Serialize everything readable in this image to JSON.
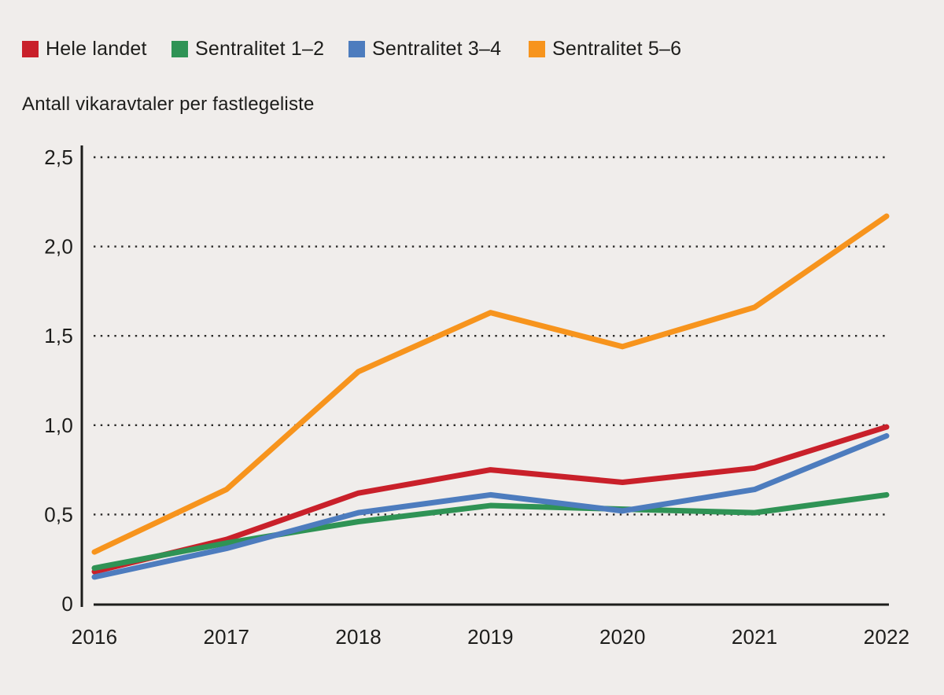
{
  "colors": {
    "background": "#f0edeb",
    "text": "#1d1d1b",
    "axis": "#1d1d1b",
    "grid": "#2a2a28",
    "red": "#c9202a",
    "green": "#2f9355",
    "blue": "#4d7cbe",
    "orange": "#f7941d"
  },
  "legend": {
    "items": [
      {
        "key": "hele-landet",
        "label": "Hele landet",
        "color": "#c9202a"
      },
      {
        "key": "sentralitet-1-2",
        "label": "Sentralitet 1–2",
        "color": "#2f9355"
      },
      {
        "key": "sentralitet-3-4",
        "label": "Sentralitet 3–4",
        "color": "#4d7cbe"
      },
      {
        "key": "sentralitet-5-6",
        "label": "Sentralitet 5–6",
        "color": "#f7941d"
      }
    ]
  },
  "chart_data": {
    "type": "line",
    "title": "Antall vikaravtaler per fastlegeliste",
    "xlabel": "",
    "ylabel": "Antall vikaravtaler per fastlegeliste",
    "x": [
      2016,
      2017,
      2018,
      2019,
      2020,
      2021,
      2022
    ],
    "x_tick_labels": [
      "2016",
      "2017",
      "2018",
      "2019",
      "2020",
      "2021",
      "2022"
    ],
    "y_ticks": [
      0,
      0.5,
      1.0,
      1.5,
      2.0,
      2.5
    ],
    "y_tick_labels": [
      "0",
      "0,5",
      "1,0",
      "1,5",
      "2,0",
      "2,5"
    ],
    "ylim": [
      0,
      2.5
    ],
    "grid": "horizontal-dotted",
    "legend_position": "top",
    "decimal_separator": ",",
    "series": [
      {
        "key": "hele-landet",
        "name": "Hele landet",
        "color": "#c9202a",
        "values": [
          0.18,
          0.36,
          0.62,
          0.75,
          0.68,
          0.76,
          0.99
        ]
      },
      {
        "key": "sentralitet-1-2",
        "name": "Sentralitet 1–2",
        "color": "#2f9355",
        "values": [
          0.2,
          0.34,
          0.46,
          0.55,
          0.53,
          0.51,
          0.61
        ]
      },
      {
        "key": "sentralitet-3-4",
        "name": "Sentralitet 3–4",
        "color": "#4d7cbe",
        "values": [
          0.15,
          0.31,
          0.51,
          0.61,
          0.52,
          0.64,
          0.94
        ]
      },
      {
        "key": "sentralitet-5-6",
        "name": "Sentralitet 5–6",
        "color": "#f7941d",
        "values": [
          0.29,
          0.64,
          1.3,
          1.63,
          1.44,
          1.66,
          2.17
        ]
      }
    ]
  }
}
